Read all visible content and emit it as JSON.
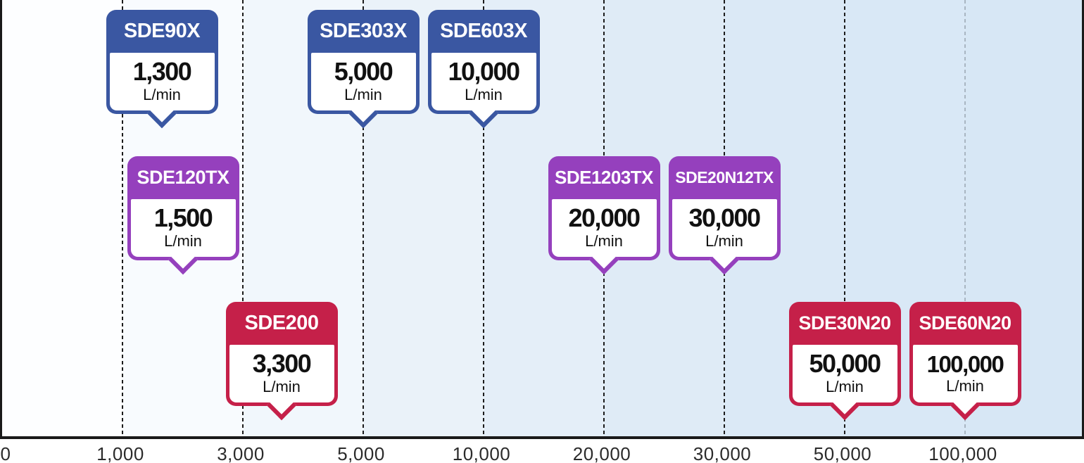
{
  "colors": {
    "blue": "#3a57a2",
    "purple": "#9540bd",
    "red": "#c52049",
    "grid_dark": "#1c1c1c",
    "grid_light": "#a9b6c2",
    "axis_line": "#1a1a1a",
    "bg_left": "#fdfeff",
    "bg_right": "#d7e7f5",
    "value_text": "#111111",
    "tick_text": "#2b2b2b"
  },
  "axis": {
    "ticks": [
      "0",
      "1,000",
      "3,000",
      "5,000",
      "10,000",
      "20,000",
      "30,000",
      "50,000",
      "100,000"
    ]
  },
  "badges": [
    {
      "model": "SDE90X",
      "value": "1,300",
      "unit": "L/min",
      "color": "blue"
    },
    {
      "model": "SDE120TX",
      "value": "1,500",
      "unit": "L/min",
      "color": "purple"
    },
    {
      "model": "SDE200",
      "value": "3,300",
      "unit": "L/min",
      "color": "red"
    },
    {
      "model": "SDE303X",
      "value": "5,000",
      "unit": "L/min",
      "color": "blue"
    },
    {
      "model": "SDE603X",
      "value": "10,000",
      "unit": "L/min",
      "color": "blue"
    },
    {
      "model": "SDE1203TX",
      "value": "20,000",
      "unit": "L/min",
      "color": "purple"
    },
    {
      "model": "SDE20N12TX",
      "value": "30,000",
      "unit": "L/min",
      "color": "purple"
    },
    {
      "model": "SDE30N20",
      "value": "50,000",
      "unit": "L/min",
      "color": "red"
    },
    {
      "model": "SDE60N20",
      "value": "100,000",
      "unit": "L/min",
      "color": "red"
    }
  ],
  "chart_data": {
    "type": "scatter",
    "title": "",
    "xlabel": "L/min",
    "ylabel": "",
    "x_scale": "log-like (ticks equally spaced)",
    "x_ticks": [
      0,
      1000,
      3000,
      5000,
      10000,
      20000,
      30000,
      50000,
      100000
    ],
    "x_tick_labels": [
      "0",
      "1,000",
      "3,000",
      "5,000",
      "10,000",
      "20,000",
      "30,000",
      "50,000",
      "100,000"
    ],
    "grid": "vertical dashed gridlines at each tick; 100,000 gridline light gray, others dark",
    "legend_position": "none",
    "series": [
      {
        "name": "blue group (top row)",
        "color": "#3a57a2",
        "points": [
          {
            "model": "SDE90X",
            "flow_l_min": 1300
          },
          {
            "model": "SDE303X",
            "flow_l_min": 5000
          },
          {
            "model": "SDE603X",
            "flow_l_min": 10000
          }
        ]
      },
      {
        "name": "purple group (middle row)",
        "color": "#9540bd",
        "points": [
          {
            "model": "SDE120TX",
            "flow_l_min": 1500
          },
          {
            "model": "SDE1203TX",
            "flow_l_min": 20000
          },
          {
            "model": "SDE20N12TX",
            "flow_l_min": 30000
          }
        ]
      },
      {
        "name": "red group (bottom row)",
        "color": "#c52049",
        "points": [
          {
            "model": "SDE200",
            "flow_l_min": 3300
          },
          {
            "model": "SDE30N20",
            "flow_l_min": 50000
          },
          {
            "model": "SDE60N20",
            "flow_l_min": 100000
          }
        ]
      }
    ]
  }
}
